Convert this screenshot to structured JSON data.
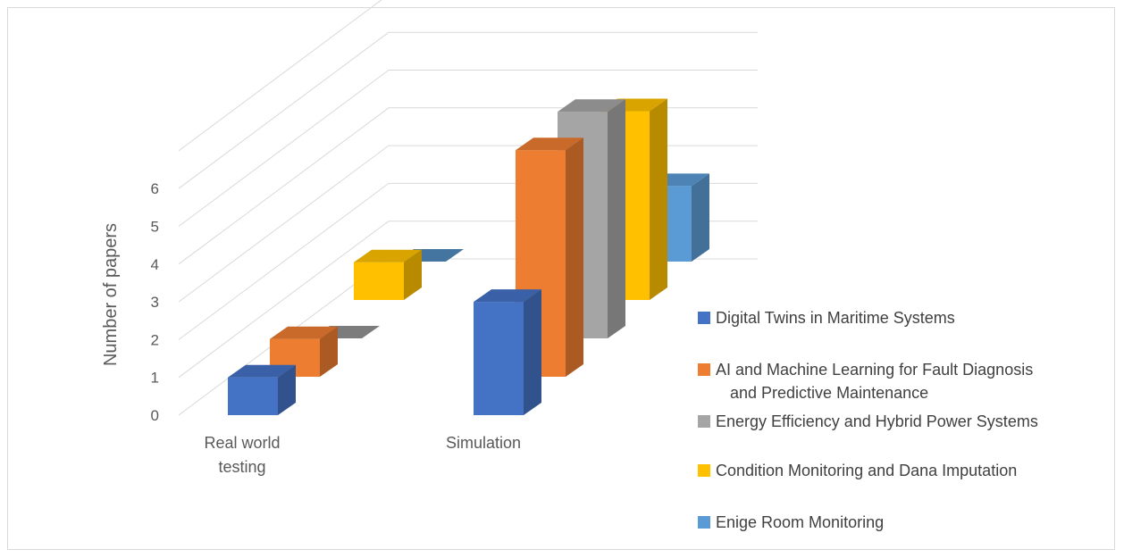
{
  "chart_data": {
    "type": "bar",
    "chart_style": "3d-column",
    "ylabel": "Number of papers",
    "xlabel": "",
    "ylim": [
      0,
      6
    ],
    "y_ticks": [
      0,
      1,
      2,
      3,
      4,
      5,
      6
    ],
    "grid": true,
    "legend_position": "right",
    "categories": [
      {
        "lines": [
          "Real world",
          "testing"
        ]
      },
      {
        "lines": [
          "Simulation"
        ]
      }
    ],
    "series": [
      {
        "name": "Digital Twins in Maritime Systems",
        "color": "#4472c4",
        "values": [
          1,
          3
        ]
      },
      {
        "name": "AI and Machine Learning for Fault Diagnosis and Predictive Maintenance",
        "legend_lines": [
          "AI and Machine Learning for Fault Diagnosis",
          "and Predictive Maintenance"
        ],
        "color": "#ed7d31",
        "values": [
          1,
          6
        ]
      },
      {
        "name": "Energy Efficiency and Hybrid Power Systems",
        "color": "#a5a5a5",
        "values": [
          0,
          6
        ]
      },
      {
        "name": "Condition Monitoring and Dana Imputation",
        "color": "#ffc000",
        "values": [
          1,
          5
        ]
      },
      {
        "name": "Enige Room Monitoring",
        "color": "#5b9bd5",
        "values": [
          0,
          2
        ]
      }
    ]
  }
}
